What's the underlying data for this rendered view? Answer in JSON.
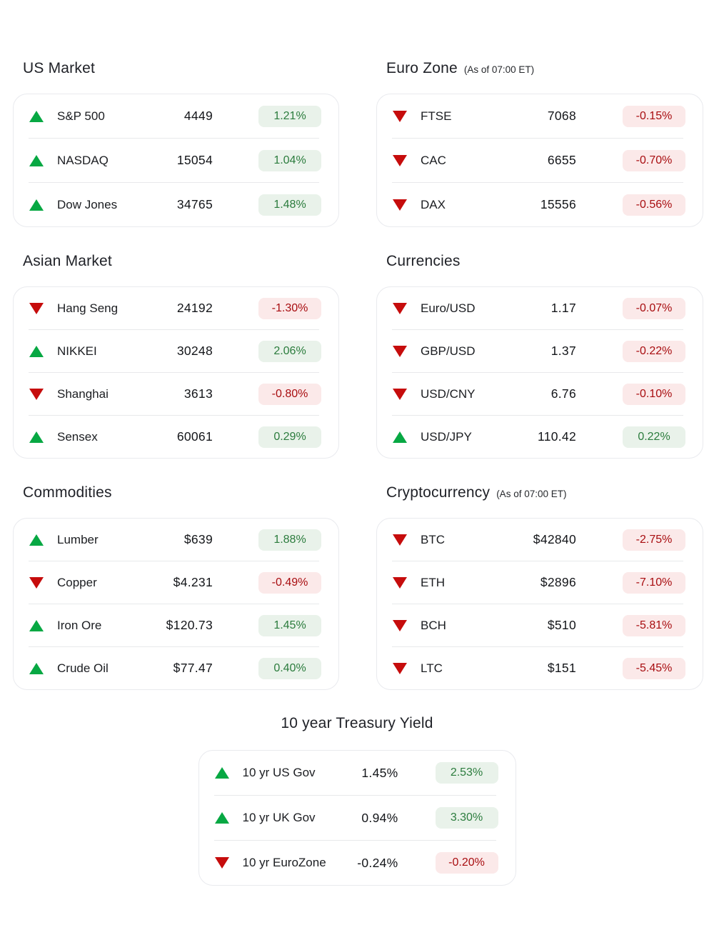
{
  "colors": {
    "up_triangle": "#07a843",
    "down_triangle": "#c60c0c",
    "badge_up_bg": "#e9f2ea",
    "badge_up_text": "#2b7c3d",
    "badge_down_bg": "#fbe9e9",
    "badge_down_text": "#a80d10"
  },
  "sections": [
    {
      "id": "us-market",
      "title": "US Market",
      "subtitle": "",
      "rows": [
        {
          "dir": "up",
          "label": "S&P 500",
          "value": "4449",
          "change": "1.21%"
        },
        {
          "dir": "up",
          "label": "NASDAQ",
          "value": "15054",
          "change": "1.04%"
        },
        {
          "dir": "up",
          "label": "Dow Jones",
          "value": "34765",
          "change": "1.48%"
        }
      ]
    },
    {
      "id": "euro-zone",
      "title": "Euro Zone",
      "subtitle": "(As of 07:00 ET)",
      "rows": [
        {
          "dir": "down",
          "label": "FTSE",
          "value": "7068",
          "change": "-0.15%"
        },
        {
          "dir": "down",
          "label": "CAC",
          "value": "6655",
          "change": "-0.70%"
        },
        {
          "dir": "down",
          "label": "DAX",
          "value": "15556",
          "change": "-0.56%"
        }
      ]
    },
    {
      "id": "asian-market",
      "title": "Asian Market",
      "subtitle": "",
      "rows": [
        {
          "dir": "down",
          "label": "Hang Seng",
          "value": "24192",
          "change": "-1.30%"
        },
        {
          "dir": "up",
          "label": "NIKKEI",
          "value": "30248",
          "change": "2.06%"
        },
        {
          "dir": "down",
          "label": "Shanghai",
          "value": "3613",
          "change": "-0.80%"
        },
        {
          "dir": "up",
          "label": "Sensex",
          "value": "60061",
          "change": "0.29%"
        }
      ]
    },
    {
      "id": "currencies",
      "title": "Currencies",
      "subtitle": "",
      "rows": [
        {
          "dir": "down",
          "label": "Euro/USD",
          "value": "1.17",
          "change": "-0.07%"
        },
        {
          "dir": "down",
          "label": "GBP/USD",
          "value": "1.37",
          "change": "-0.22%"
        },
        {
          "dir": "down",
          "label": "USD/CNY",
          "value": "6.76",
          "change": "-0.10%"
        },
        {
          "dir": "up",
          "label": "USD/JPY",
          "value": "110.42",
          "change": "0.22%"
        }
      ]
    },
    {
      "id": "commodities",
      "title": "Commodities",
      "subtitle": "",
      "rows": [
        {
          "dir": "up",
          "label": "Lumber",
          "value": "$639",
          "change": "1.88%"
        },
        {
          "dir": "down",
          "label": "Copper",
          "value": "$4.231",
          "change": "-0.49%"
        },
        {
          "dir": "up",
          "label": "Iron Ore",
          "value": "$120.73",
          "change": "1.45%"
        },
        {
          "dir": "up",
          "label": "Crude Oil",
          "value": "$77.47",
          "change": "0.40%"
        }
      ]
    },
    {
      "id": "cryptocurrency",
      "title": "Cryptocurrency",
      "subtitle": "(As of 07:00 ET)",
      "rows": [
        {
          "dir": "down",
          "label": "BTC",
          "value": "$42840",
          "change": "-2.75%"
        },
        {
          "dir": "down",
          "label": "ETH",
          "value": "$2896",
          "change": "-7.10%"
        },
        {
          "dir": "down",
          "label": "BCH",
          "value": "$510",
          "change": "-5.81%"
        },
        {
          "dir": "down",
          "label": "LTC",
          "value": "$151",
          "change": "-5.45%"
        }
      ]
    },
    {
      "id": "treasury-yield",
      "title": "10 year Treasury Yield",
      "subtitle": "",
      "rows": [
        {
          "dir": "up",
          "label": "10 yr US Gov",
          "value": "1.45%",
          "change": "2.53%"
        },
        {
          "dir": "up",
          "label": "10 yr UK Gov",
          "value": "0.94%",
          "change": "3.30%"
        },
        {
          "dir": "down",
          "label": "10 yr EuroZone",
          "value": "-0.24%",
          "change": "-0.20%"
        }
      ]
    }
  ]
}
